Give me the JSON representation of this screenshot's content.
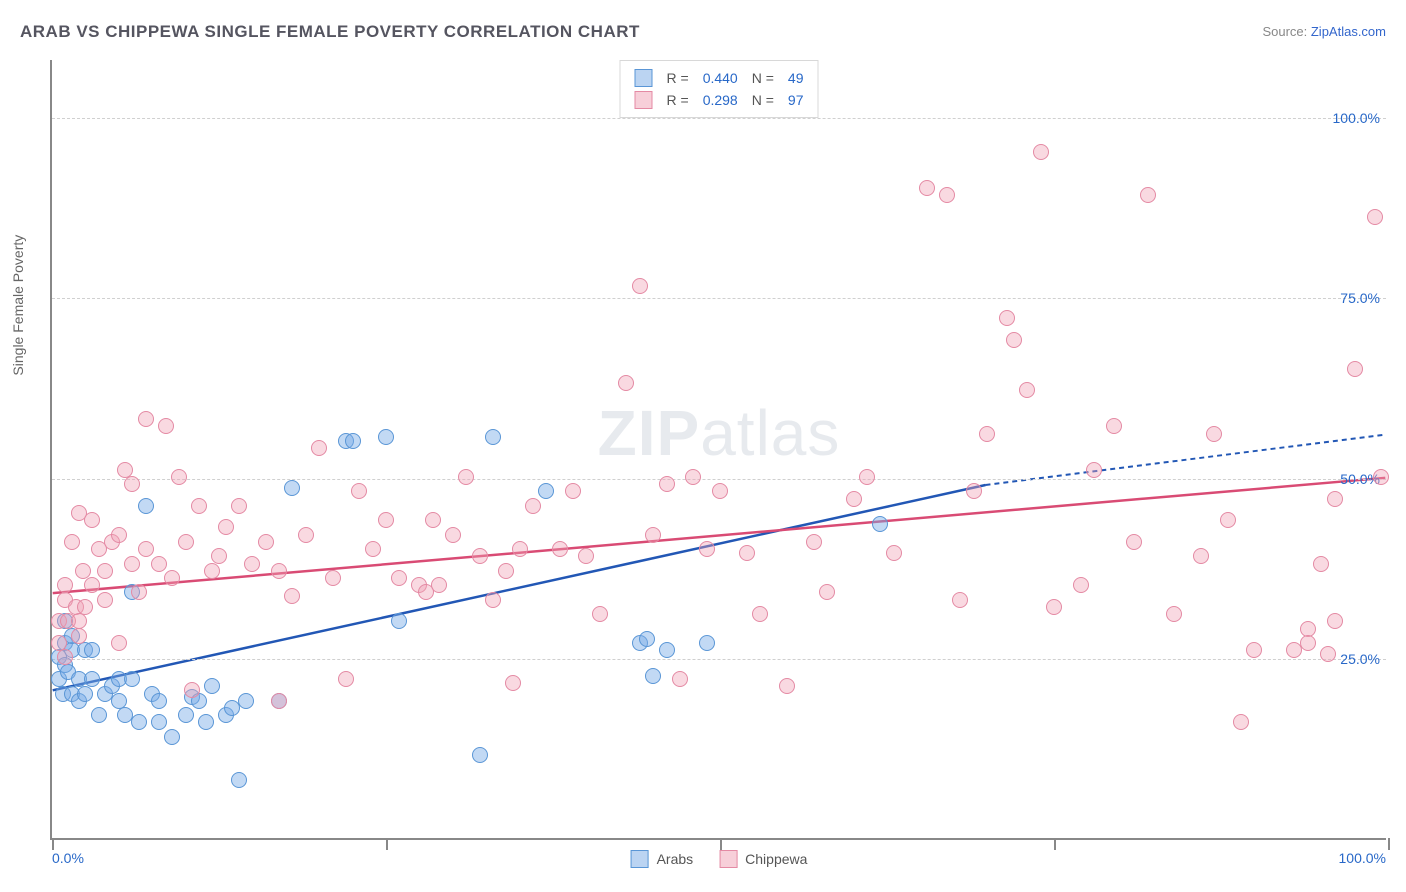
{
  "title": "ARAB VS CHIPPEWA SINGLE FEMALE POVERTY CORRELATION CHART",
  "source_prefix": "Source: ",
  "source_link": "ZipAtlas.com",
  "ylabel": "Single Female Poverty",
  "watermark_bold": "ZIP",
  "watermark_rest": "atlas",
  "chart": {
    "type": "scatter",
    "xlim": [
      0,
      100
    ],
    "ylim": [
      0,
      108
    ],
    "background_color": "#ffffff",
    "grid_color": "#d0d0d0",
    "axis_color": "#888888",
    "label_color": "#2868c8",
    "label_fontsize": 14,
    "marker_size": 16,
    "y_gridlines": [
      25,
      50,
      75,
      100
    ],
    "y_tick_labels": [
      "25.0%",
      "50.0%",
      "75.0%",
      "100.0%"
    ],
    "x_ticks": [
      0,
      25,
      50,
      75,
      100
    ],
    "x_tick_label_left": "0.0%",
    "x_tick_label_right": "100.0%",
    "series": [
      {
        "name": "Arabs",
        "color_fill": "rgba(120,170,230,0.45)",
        "color_stroke": "#5a96d6",
        "trend_color": "#2257b5",
        "r": "0.440",
        "n": "49",
        "trend": {
          "x1": 0,
          "y1": 20.5,
          "x2": 70,
          "y2": 49,
          "ext_x": 100,
          "ext_y": 56
        },
        "points": [
          [
            0.5,
            22
          ],
          [
            0.5,
            25
          ],
          [
            0.8,
            20
          ],
          [
            1,
            27
          ],
          [
            1,
            24
          ],
          [
            1,
            30
          ],
          [
            1.2,
            23
          ],
          [
            1.5,
            20
          ],
          [
            1.5,
            26
          ],
          [
            1.5,
            28
          ],
          [
            2,
            22
          ],
          [
            2,
            19
          ],
          [
            2.5,
            26
          ],
          [
            2.5,
            20
          ],
          [
            3,
            22
          ],
          [
            3,
            26
          ],
          [
            3.5,
            17
          ],
          [
            4,
            20
          ],
          [
            4.5,
            21
          ],
          [
            5,
            22
          ],
          [
            5,
            19
          ],
          [
            5.5,
            17
          ],
          [
            6,
            34
          ],
          [
            6,
            22
          ],
          [
            6.5,
            16
          ],
          [
            7,
            46
          ],
          [
            7.5,
            20
          ],
          [
            8,
            19
          ],
          [
            8,
            16
          ],
          [
            9,
            14
          ],
          [
            10,
            17
          ],
          [
            10.5,
            19.5
          ],
          [
            11,
            19
          ],
          [
            11.5,
            16
          ],
          [
            12,
            21
          ],
          [
            13,
            17
          ],
          [
            13.5,
            18
          ],
          [
            14,
            8
          ],
          [
            14.5,
            19
          ],
          [
            17,
            19
          ],
          [
            18,
            48.5
          ],
          [
            22,
            55
          ],
          [
            22.5,
            55
          ],
          [
            25,
            55.5
          ],
          [
            26,
            30
          ],
          [
            32,
            11.5
          ],
          [
            33,
            55.5
          ],
          [
            37,
            48
          ],
          [
            44,
            27
          ],
          [
            44.5,
            27.5
          ],
          [
            45,
            22.5
          ],
          [
            46,
            26
          ],
          [
            49,
            27
          ],
          [
            62,
            43.5
          ]
        ]
      },
      {
        "name": "Chippewa",
        "color_fill": "rgba(240,160,180,0.40)",
        "color_stroke": "#e48aa4",
        "trend_color": "#d94b74",
        "r": "0.298",
        "n": "97",
        "trend": {
          "x1": 0,
          "y1": 34,
          "x2": 100,
          "y2": 50,
          "ext_x": 100,
          "ext_y": 50
        },
        "points": [
          [
            0.5,
            27
          ],
          [
            0.5,
            30
          ],
          [
            1,
            33
          ],
          [
            1,
            35
          ],
          [
            1,
            25
          ],
          [
            1.2,
            30
          ],
          [
            1.5,
            41
          ],
          [
            1.8,
            32
          ],
          [
            2,
            30
          ],
          [
            2,
            28
          ],
          [
            2,
            45
          ],
          [
            2.3,
            37
          ],
          [
            2.5,
            32
          ],
          [
            3,
            35
          ],
          [
            3,
            44
          ],
          [
            3.5,
            40
          ],
          [
            4,
            37
          ],
          [
            4,
            33
          ],
          [
            4.5,
            41
          ],
          [
            5,
            27
          ],
          [
            5,
            42
          ],
          [
            5.5,
            51
          ],
          [
            6,
            38
          ],
          [
            6,
            49
          ],
          [
            6.5,
            34
          ],
          [
            7,
            58
          ],
          [
            7,
            40
          ],
          [
            8,
            38
          ],
          [
            8.5,
            57
          ],
          [
            9,
            36
          ],
          [
            9.5,
            50
          ],
          [
            10,
            41
          ],
          [
            10.5,
            20.5
          ],
          [
            11,
            46
          ],
          [
            12,
            37
          ],
          [
            12.5,
            39
          ],
          [
            13,
            43
          ],
          [
            14,
            46
          ],
          [
            15,
            38
          ],
          [
            16,
            41
          ],
          [
            17,
            37
          ],
          [
            17,
            19
          ],
          [
            18,
            33.5
          ],
          [
            19,
            42
          ],
          [
            20,
            54
          ],
          [
            21,
            36
          ],
          [
            22,
            22
          ],
          [
            23,
            48
          ],
          [
            24,
            40
          ],
          [
            25,
            44
          ],
          [
            26,
            36
          ],
          [
            27.5,
            35
          ],
          [
            28,
            34
          ],
          [
            28.5,
            44
          ],
          [
            29,
            35
          ],
          [
            30,
            42
          ],
          [
            31,
            50
          ],
          [
            32,
            39
          ],
          [
            33,
            33
          ],
          [
            34,
            37
          ],
          [
            34.5,
            21.5
          ],
          [
            35,
            40
          ],
          [
            36,
            46
          ],
          [
            38,
            40
          ],
          [
            39,
            48
          ],
          [
            40,
            39
          ],
          [
            41,
            31
          ],
          [
            43,
            63
          ],
          [
            44,
            76.5
          ],
          [
            45,
            42
          ],
          [
            46,
            49
          ],
          [
            47,
            22
          ],
          [
            48,
            50
          ],
          [
            49,
            40
          ],
          [
            50,
            48
          ],
          [
            52,
            39.5
          ],
          [
            53,
            31
          ],
          [
            55,
            21
          ],
          [
            57,
            41
          ],
          [
            58,
            34
          ],
          [
            60,
            47
          ],
          [
            61,
            50
          ],
          [
            63,
            39.5
          ],
          [
            65.5,
            90
          ],
          [
            67,
            89
          ],
          [
            68,
            33
          ],
          [
            69,
            48
          ],
          [
            70,
            56
          ],
          [
            71.5,
            72
          ],
          [
            72,
            69
          ],
          [
            73,
            62
          ],
          [
            74,
            95
          ],
          [
            75,
            32
          ],
          [
            77,
            35
          ],
          [
            78,
            51
          ],
          [
            79.5,
            57
          ],
          [
            81,
            41
          ],
          [
            82,
            89
          ],
          [
            84,
            31
          ],
          [
            86,
            39
          ],
          [
            87,
            56
          ],
          [
            88,
            44
          ],
          [
            89,
            16
          ],
          [
            90,
            26
          ],
          [
            93,
            26
          ],
          [
            94,
            29
          ],
          [
            94,
            27
          ],
          [
            95,
            38
          ],
          [
            95.5,
            25.5
          ],
          [
            96,
            30
          ],
          [
            96,
            47
          ],
          [
            97.5,
            65
          ],
          [
            99,
            86
          ],
          [
            99.5,
            50
          ]
        ]
      }
    ]
  },
  "legend_bottom": [
    {
      "swatch": "blue",
      "label": "Arabs"
    },
    {
      "swatch": "pink",
      "label": "Chippewa"
    }
  ]
}
